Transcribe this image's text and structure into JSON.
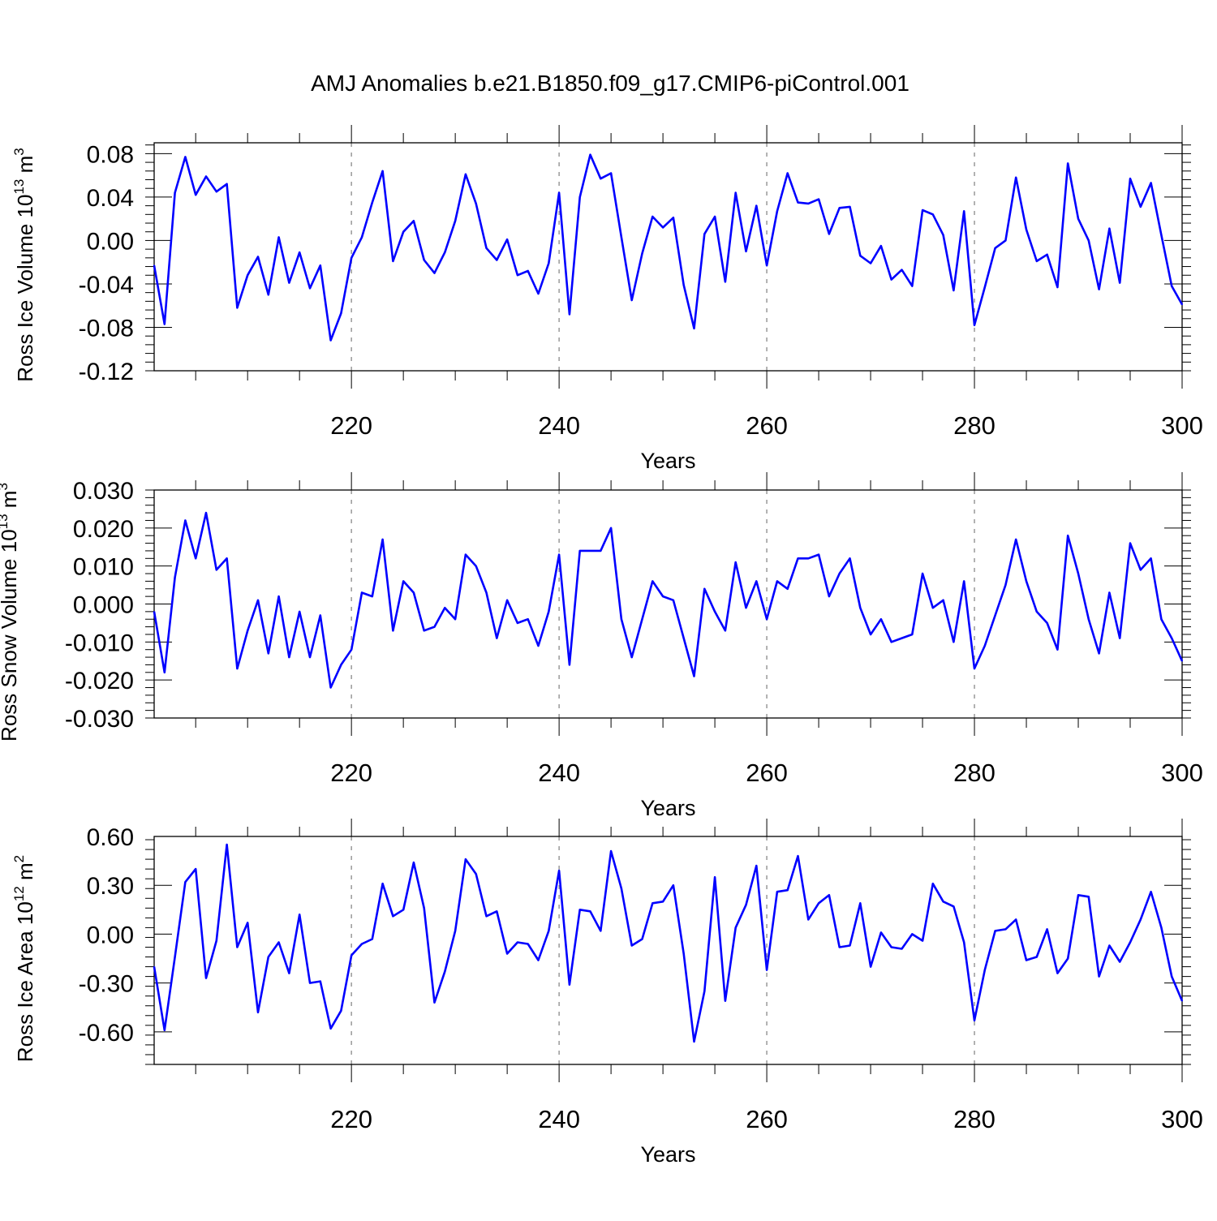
{
  "title": "AMJ Anomalies b.e21.B1850.f09_g17.CMIP6-piControl.001",
  "colors": {
    "line": "#0000ff",
    "axis": "#000000",
    "grid": "#999999"
  },
  "chart_data": [
    {
      "type": "line",
      "ylabel_main": "Ross Ice Volume 10",
      "ylabel_exp": "13",
      "ylabel_unit": " m",
      "ylabel_unit_exp": "3",
      "xlabel": "Years",
      "xlim": [
        201,
        300
      ],
      "ylim": [
        -0.12,
        0.09
      ],
      "yticks": [
        -0.12,
        -0.08,
        -0.04,
        0.0,
        0.04,
        0.08
      ],
      "ytick_labels": [
        "-0.12",
        "-0.08",
        "-0.04",
        "0.00",
        "0.04",
        "0.08"
      ],
      "xticks": [
        220,
        240,
        260,
        280,
        300
      ],
      "xtick_labels": [
        "220",
        "240",
        "260",
        "280",
        "300"
      ],
      "vgrid": [
        220,
        240,
        260,
        280
      ],
      "x_start": 201,
      "values": [
        -0.023,
        -0.077,
        0.044,
        0.077,
        0.042,
        0.059,
        0.045,
        0.052,
        -0.062,
        -0.032,
        -0.015,
        -0.05,
        0.003,
        -0.039,
        -0.011,
        -0.044,
        -0.023,
        -0.092,
        -0.067,
        -0.016,
        0.003,
        0.035,
        0.064,
        -0.019,
        0.008,
        0.018,
        -0.018,
        -0.03,
        -0.011,
        0.018,
        0.061,
        0.034,
        -0.007,
        -0.018,
        0.001,
        -0.032,
        -0.028,
        -0.049,
        -0.021,
        0.044,
        -0.068,
        0.04,
        0.079,
        0.057,
        0.062,
        0.003,
        -0.055,
        -0.012,
        0.022,
        0.012,
        0.021,
        -0.041,
        -0.081,
        0.006,
        0.022,
        -0.038,
        0.044,
        -0.01,
        0.032,
        -0.023,
        0.027,
        0.062,
        0.035,
        0.034,
        0.038,
        0.006,
        0.03,
        0.031,
        -0.014,
        -0.021,
        -0.005,
        -0.036,
        -0.027,
        -0.042,
        0.028,
        0.024,
        0.005,
        -0.046,
        0.027,
        -0.078,
        -0.043,
        -0.007,
        0.0,
        0.058,
        0.01,
        -0.019,
        -0.013,
        -0.043,
        0.071,
        0.02,
        0.0,
        -0.045,
        0.011,
        -0.039,
        0.057,
        0.031,
        0.053,
        0.005,
        -0.042,
        -0.059
      ]
    },
    {
      "type": "line",
      "ylabel_main": "Ross Snow Volume 10",
      "ylabel_exp": "13",
      "ylabel_unit": " m",
      "ylabel_unit_exp": "3",
      "xlabel": "Years",
      "xlim": [
        201,
        300
      ],
      "ylim": [
        -0.03,
        0.03
      ],
      "yticks": [
        -0.03,
        -0.02,
        -0.01,
        0.0,
        0.01,
        0.02,
        0.03
      ],
      "ytick_labels": [
        "-0.030",
        "-0.020",
        "-0.010",
        "0.000",
        "0.010",
        "0.020",
        "0.030"
      ],
      "xticks": [
        220,
        240,
        260,
        280,
        300
      ],
      "xtick_labels": [
        "220",
        "240",
        "260",
        "280",
        "300"
      ],
      "vgrid": [
        220,
        240,
        260,
        280
      ],
      "x_start": 201,
      "values": [
        -0.002,
        -0.018,
        0.007,
        0.022,
        0.012,
        0.024,
        0.009,
        0.012,
        -0.017,
        -0.007,
        0.001,
        -0.013,
        0.002,
        -0.014,
        -0.002,
        -0.014,
        -0.003,
        -0.022,
        -0.016,
        -0.012,
        0.003,
        0.002,
        0.017,
        -0.007,
        0.006,
        0.003,
        -0.007,
        -0.006,
        -0.001,
        -0.004,
        0.013,
        0.01,
        0.003,
        -0.009,
        0.001,
        -0.005,
        -0.004,
        -0.011,
        -0.002,
        0.013,
        -0.016,
        0.014,
        0.014,
        0.014,
        0.02,
        -0.004,
        -0.014,
        -0.004,
        0.006,
        0.002,
        0.001,
        -0.009,
        -0.019,
        0.004,
        -0.002,
        -0.007,
        0.011,
        -0.001,
        0.006,
        -0.004,
        0.006,
        0.004,
        0.012,
        0.012,
        0.013,
        0.002,
        0.008,
        0.012,
        -0.001,
        -0.008,
        -0.004,
        -0.01,
        -0.009,
        -0.008,
        0.008,
        -0.001,
        0.001,
        -0.01,
        0.006,
        -0.017,
        -0.011,
        -0.003,
        0.005,
        0.017,
        0.006,
        -0.002,
        -0.005,
        -0.012,
        0.018,
        0.008,
        -0.004,
        -0.013,
        0.003,
        -0.009,
        0.016,
        0.009,
        0.012,
        -0.004,
        -0.009,
        -0.015
      ]
    },
    {
      "type": "line",
      "ylabel_main": "Ross Ice Area 10",
      "ylabel_exp": "12",
      "ylabel_unit": " m",
      "ylabel_unit_exp": "2",
      "xlabel": "Years",
      "xlim": [
        201,
        300
      ],
      "ylim": [
        -0.8,
        0.6
      ],
      "yticks": [
        -0.6,
        -0.3,
        0.0,
        0.3,
        0.6
      ],
      "ytick_labels": [
        "-0.60",
        "-0.30",
        "0.00",
        "0.30",
        "0.60"
      ],
      "xticks": [
        220,
        240,
        260,
        280,
        300
      ],
      "xtick_labels": [
        "220",
        "240",
        "260",
        "280",
        "300"
      ],
      "vgrid": [
        220,
        240,
        260,
        280
      ],
      "x_start": 201,
      "values": [
        -0.2,
        -0.59,
        -0.14,
        0.32,
        0.4,
        -0.27,
        -0.04,
        0.55,
        -0.08,
        0.07,
        -0.48,
        -0.14,
        -0.05,
        -0.24,
        0.12,
        -0.3,
        -0.29,
        -0.58,
        -0.47,
        -0.13,
        -0.06,
        -0.03,
        0.31,
        0.11,
        0.15,
        0.44,
        0.16,
        -0.42,
        -0.23,
        0.02,
        0.46,
        0.37,
        0.11,
        0.14,
        -0.12,
        -0.05,
        -0.06,
        -0.16,
        0.02,
        0.39,
        -0.31,
        0.15,
        0.14,
        0.02,
        0.51,
        0.28,
        -0.07,
        -0.03,
        0.19,
        0.2,
        0.3,
        -0.12,
        -0.66,
        -0.35,
        0.35,
        -0.41,
        0.04,
        0.18,
        0.42,
        -0.22,
        0.26,
        0.27,
        0.48,
        0.09,
        0.19,
        0.24,
        -0.08,
        -0.07,
        0.19,
        -0.2,
        0.01,
        -0.08,
        -0.09,
        -0.0,
        -0.04,
        0.31,
        0.2,
        0.17,
        -0.05,
        -0.53,
        -0.22,
        0.02,
        0.03,
        0.09,
        -0.16,
        -0.14,
        0.03,
        -0.24,
        -0.15,
        0.24,
        0.23,
        -0.26,
        -0.07,
        -0.17,
        -0.05,
        0.09,
        0.26,
        0.04,
        -0.26,
        -0.41
      ]
    }
  ]
}
